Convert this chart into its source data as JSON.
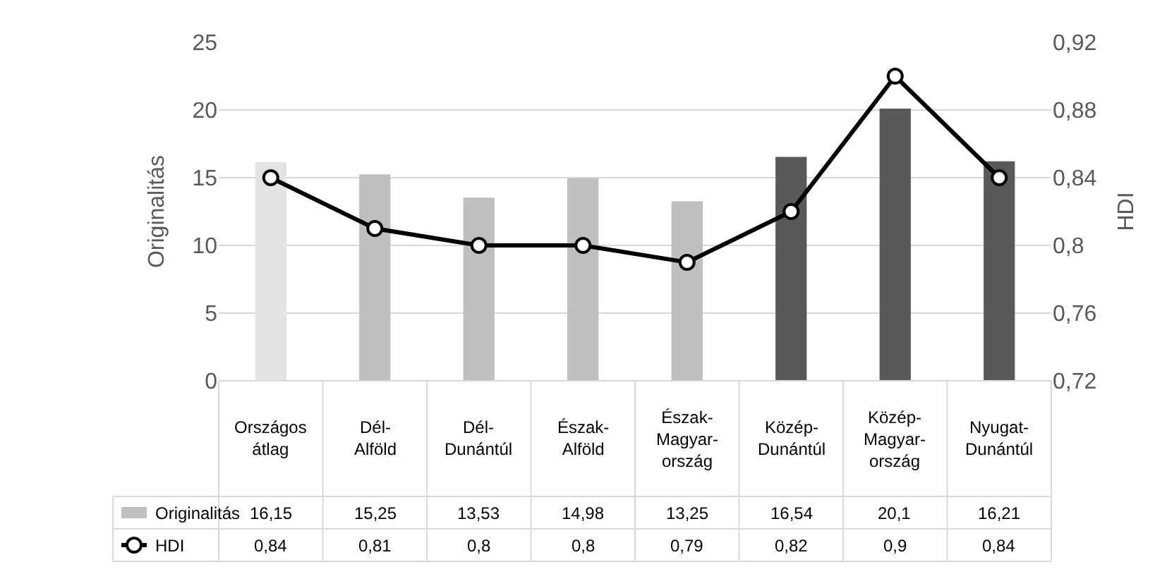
{
  "chart_data": {
    "type": "bar",
    "ylabel": "Originalitás",
    "y2label": "HDI",
    "categories": [
      "Országos átlag",
      "Dél-Alföld",
      "Dél-Dunántúl",
      "Észak-Alföld",
      "Észak-Magyar-ország",
      "Közép-Dunántúl",
      "Közép-Magyar-ország",
      "Nyugat-Dunántúl"
    ],
    "series": [
      {
        "name": "Originalitás",
        "value_labels": [
          "16,15",
          "15,25",
          "13,53",
          "14,98",
          "13,25",
          "16,54",
          "20,1",
          "16,21"
        ],
        "color": "#bfbfbf",
        "colors": [
          "#e3e3e3",
          "#bfbfbf",
          "#bfbfbf",
          "#bfbfbf",
          "#bfbfbf",
          "#595959",
          "#595959",
          "#595959"
        ],
        "values": [
          16.15,
          15.25,
          13.53,
          14.98,
          13.25,
          16.54,
          20.1,
          16.21
        ]
      },
      {
        "name": "HDI",
        "type": "line",
        "axis": "y2",
        "color": "#000000",
        "marker": "circle",
        "value_labels": [
          "0,84",
          "0,81",
          "0,8",
          "0,8",
          "0,79",
          "0,82",
          "0,9",
          "0,84"
        ],
        "values": [
          0.84,
          0.81,
          0.8,
          0.8,
          0.79,
          0.82,
          0.9,
          0.84
        ]
      }
    ],
    "ylim": [
      0,
      25
    ],
    "yticks": [
      0,
      5,
      10,
      15,
      20,
      25
    ],
    "y2lim": [
      0.72,
      0.92
    ],
    "y2ticks": [
      {
        "value": 0.72,
        "label": "0,72"
      },
      {
        "value": 0.76,
        "label": "0,76"
      },
      {
        "value": 0.8,
        "label": "0,8"
      },
      {
        "value": 0.84,
        "label": "0,84"
      },
      {
        "value": 0.88,
        "label": "0,88"
      },
      {
        "value": 0.92,
        "label": "0,92"
      }
    ],
    "grid": "y",
    "legend": "bottom left"
  }
}
